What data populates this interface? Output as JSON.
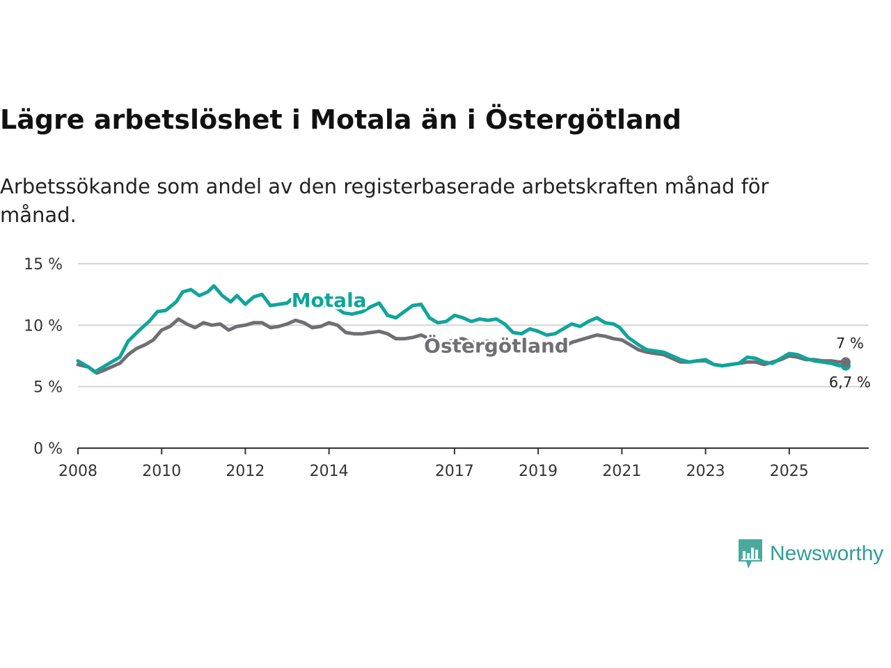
{
  "title": "Lägre arbetslöshet i Motala än i Östergötland",
  "subtitle": "Arbetssökande som andel av den registerbaserade arbetskraften månad för månad.",
  "brand": "Newsworthy",
  "colors": {
    "motala": "#0fa59a",
    "ostergotland": "#6f6f73",
    "grid": "#d4d4d4",
    "axis": "#333333"
  },
  "chart_data": {
    "type": "line",
    "title": "Lägre arbetslöshet i Motala än i Östergötland",
    "xlabel": "",
    "ylabel": "",
    "ylim": [
      0,
      15
    ],
    "xlim": [
      2008,
      2026.9
    ],
    "yticks": [
      0,
      5,
      10,
      15
    ],
    "ytick_labels": [
      "0 %",
      "5 %",
      "10 %",
      "15 %"
    ],
    "xticks": [
      2008,
      2010,
      2012,
      2014,
      2017,
      2019,
      2021,
      2023,
      2025
    ],
    "xtick_labels": [
      "2008",
      "2010",
      "2012",
      "2014",
      "2017",
      "2019",
      "2021",
      "2023",
      "2025"
    ],
    "grid": true,
    "series": [
      {
        "name": "Motala",
        "end_label": "6,7 %",
        "points": [
          [
            2008.0,
            7.1
          ],
          [
            2008.25,
            6.6
          ],
          [
            2008.4,
            6.2
          ],
          [
            2008.6,
            6.6
          ],
          [
            2008.8,
            7.0
          ],
          [
            2009.0,
            7.4
          ],
          [
            2009.2,
            8.7
          ],
          [
            2009.5,
            9.7
          ],
          [
            2009.7,
            10.3
          ],
          [
            2009.9,
            11.1
          ],
          [
            2010.1,
            11.2
          ],
          [
            2010.35,
            11.9
          ],
          [
            2010.5,
            12.7
          ],
          [
            2010.7,
            12.9
          ],
          [
            2010.9,
            12.4
          ],
          [
            2011.1,
            12.7
          ],
          [
            2011.25,
            13.2
          ],
          [
            2011.45,
            12.4
          ],
          [
            2011.65,
            11.9
          ],
          [
            2011.8,
            12.4
          ],
          [
            2012.0,
            11.7
          ],
          [
            2012.2,
            12.3
          ],
          [
            2012.4,
            12.5
          ],
          [
            2012.6,
            11.6
          ],
          [
            2012.8,
            11.7
          ],
          [
            2013.0,
            11.8
          ],
          [
            2013.2,
            12.4
          ],
          [
            2013.45,
            11.8
          ],
          [
            2013.7,
            12.0
          ],
          [
            2013.9,
            11.6
          ],
          [
            2014.1,
            11.6
          ],
          [
            2014.35,
            11.0
          ],
          [
            2014.55,
            10.9
          ],
          [
            2014.8,
            11.1
          ],
          [
            2015.0,
            11.5
          ],
          [
            2015.2,
            11.8
          ],
          [
            2015.4,
            10.8
          ],
          [
            2015.6,
            10.6
          ],
          [
            2015.8,
            11.1
          ],
          [
            2016.0,
            11.6
          ],
          [
            2016.2,
            11.7
          ],
          [
            2016.4,
            10.6
          ],
          [
            2016.6,
            10.2
          ],
          [
            2016.8,
            10.3
          ],
          [
            2017.0,
            10.8
          ],
          [
            2017.2,
            10.6
          ],
          [
            2017.4,
            10.3
          ],
          [
            2017.6,
            10.5
          ],
          [
            2017.8,
            10.4
          ],
          [
            2018.0,
            10.5
          ],
          [
            2018.2,
            10.1
          ],
          [
            2018.4,
            9.4
          ],
          [
            2018.6,
            9.3
          ],
          [
            2018.8,
            9.7
          ],
          [
            2019.0,
            9.5
          ],
          [
            2019.2,
            9.2
          ],
          [
            2019.4,
            9.3
          ],
          [
            2019.6,
            9.7
          ],
          [
            2019.8,
            10.1
          ],
          [
            2020.0,
            9.9
          ],
          [
            2020.2,
            10.3
          ],
          [
            2020.4,
            10.6
          ],
          [
            2020.6,
            10.2
          ],
          [
            2020.8,
            10.1
          ],
          [
            2020.95,
            9.8
          ],
          [
            2021.15,
            9.0
          ],
          [
            2021.4,
            8.4
          ],
          [
            2021.6,
            8.0
          ],
          [
            2021.8,
            7.9
          ],
          [
            2022.0,
            7.8
          ],
          [
            2022.2,
            7.5
          ],
          [
            2022.4,
            7.2
          ],
          [
            2022.6,
            7.0
          ],
          [
            2022.8,
            7.1
          ],
          [
            2023.0,
            7.2
          ],
          [
            2023.2,
            6.8
          ],
          [
            2023.4,
            6.7
          ],
          [
            2023.6,
            6.8
          ],
          [
            2023.8,
            6.9
          ],
          [
            2024.0,
            7.4
          ],
          [
            2024.2,
            7.3
          ],
          [
            2024.4,
            7.0
          ],
          [
            2024.6,
            6.9
          ],
          [
            2024.8,
            7.3
          ],
          [
            2025.0,
            7.7
          ],
          [
            2025.2,
            7.6
          ],
          [
            2025.4,
            7.3
          ],
          [
            2025.6,
            7.1
          ],
          [
            2025.8,
            7.0
          ],
          [
            2026.0,
            6.9
          ],
          [
            2026.2,
            6.7
          ],
          [
            2026.35,
            6.7
          ]
        ]
      },
      {
        "name": "Östergötland",
        "end_label": "7 %",
        "points": [
          [
            2008.0,
            6.8
          ],
          [
            2008.25,
            6.6
          ],
          [
            2008.45,
            6.1
          ],
          [
            2008.6,
            6.3
          ],
          [
            2008.8,
            6.6
          ],
          [
            2009.0,
            6.9
          ],
          [
            2009.2,
            7.6
          ],
          [
            2009.4,
            8.1
          ],
          [
            2009.6,
            8.4
          ],
          [
            2009.8,
            8.8
          ],
          [
            2010.0,
            9.6
          ],
          [
            2010.2,
            9.9
          ],
          [
            2010.4,
            10.5
          ],
          [
            2010.6,
            10.1
          ],
          [
            2010.8,
            9.8
          ],
          [
            2011.0,
            10.2
          ],
          [
            2011.2,
            10.0
          ],
          [
            2011.4,
            10.1
          ],
          [
            2011.6,
            9.6
          ],
          [
            2011.8,
            9.9
          ],
          [
            2012.0,
            10.0
          ],
          [
            2012.2,
            10.2
          ],
          [
            2012.4,
            10.2
          ],
          [
            2012.6,
            9.8
          ],
          [
            2012.8,
            9.9
          ],
          [
            2013.0,
            10.1
          ],
          [
            2013.2,
            10.4
          ],
          [
            2013.4,
            10.2
          ],
          [
            2013.6,
            9.8
          ],
          [
            2013.8,
            9.9
          ],
          [
            2014.0,
            10.2
          ],
          [
            2014.2,
            10.0
          ],
          [
            2014.4,
            9.4
          ],
          [
            2014.6,
            9.3
          ],
          [
            2014.8,
            9.3
          ],
          [
            2015.0,
            9.4
          ],
          [
            2015.2,
            9.5
          ],
          [
            2015.4,
            9.3
          ],
          [
            2015.6,
            8.9
          ],
          [
            2015.8,
            8.9
          ],
          [
            2016.0,
            9.0
          ],
          [
            2016.2,
            9.2
          ],
          [
            2016.4,
            8.9
          ],
          [
            2016.6,
            8.5
          ],
          [
            2016.8,
            8.6
          ],
          [
            2017.0,
            8.8
          ],
          [
            2017.2,
            8.9
          ],
          [
            2017.4,
            8.6
          ],
          [
            2017.6,
            8.6
          ],
          [
            2017.8,
            8.7
          ],
          [
            2018.0,
            8.6
          ],
          [
            2018.2,
            8.3
          ],
          [
            2018.4,
            8.0
          ],
          [
            2018.6,
            7.9
          ],
          [
            2018.8,
            8.1
          ],
          [
            2019.0,
            7.9
          ],
          [
            2019.2,
            7.8
          ],
          [
            2019.4,
            7.9
          ],
          [
            2019.6,
            8.2
          ],
          [
            2019.8,
            8.6
          ],
          [
            2020.0,
            8.8
          ],
          [
            2020.2,
            9.0
          ],
          [
            2020.4,
            9.2
          ],
          [
            2020.6,
            9.1
          ],
          [
            2020.8,
            8.9
          ],
          [
            2021.0,
            8.8
          ],
          [
            2021.2,
            8.4
          ],
          [
            2021.4,
            8.0
          ],
          [
            2021.6,
            7.8
          ],
          [
            2021.8,
            7.7
          ],
          [
            2022.0,
            7.6
          ],
          [
            2022.2,
            7.3
          ],
          [
            2022.4,
            7.0
          ],
          [
            2022.6,
            7.0
          ],
          [
            2022.8,
            7.1
          ],
          [
            2023.0,
            7.1
          ],
          [
            2023.2,
            6.8
          ],
          [
            2023.4,
            6.7
          ],
          [
            2023.6,
            6.8
          ],
          [
            2023.8,
            6.9
          ],
          [
            2024.0,
            7.0
          ],
          [
            2024.2,
            7.0
          ],
          [
            2024.4,
            6.8
          ],
          [
            2024.6,
            7.0
          ],
          [
            2024.8,
            7.2
          ],
          [
            2025.0,
            7.5
          ],
          [
            2025.2,
            7.4
          ],
          [
            2025.4,
            7.2
          ],
          [
            2025.6,
            7.2
          ],
          [
            2025.8,
            7.1
          ],
          [
            2026.0,
            7.1
          ],
          [
            2026.2,
            7.0
          ],
          [
            2026.35,
            7.0
          ]
        ]
      }
    ],
    "annotations": [
      {
        "text": "Motala",
        "series": "Motala",
        "x": 2014.0,
        "y": 12.0
      },
      {
        "text": "Östergötland",
        "series": "Östergötland",
        "x": 2018.0,
        "y": 8.3
      }
    ]
  }
}
